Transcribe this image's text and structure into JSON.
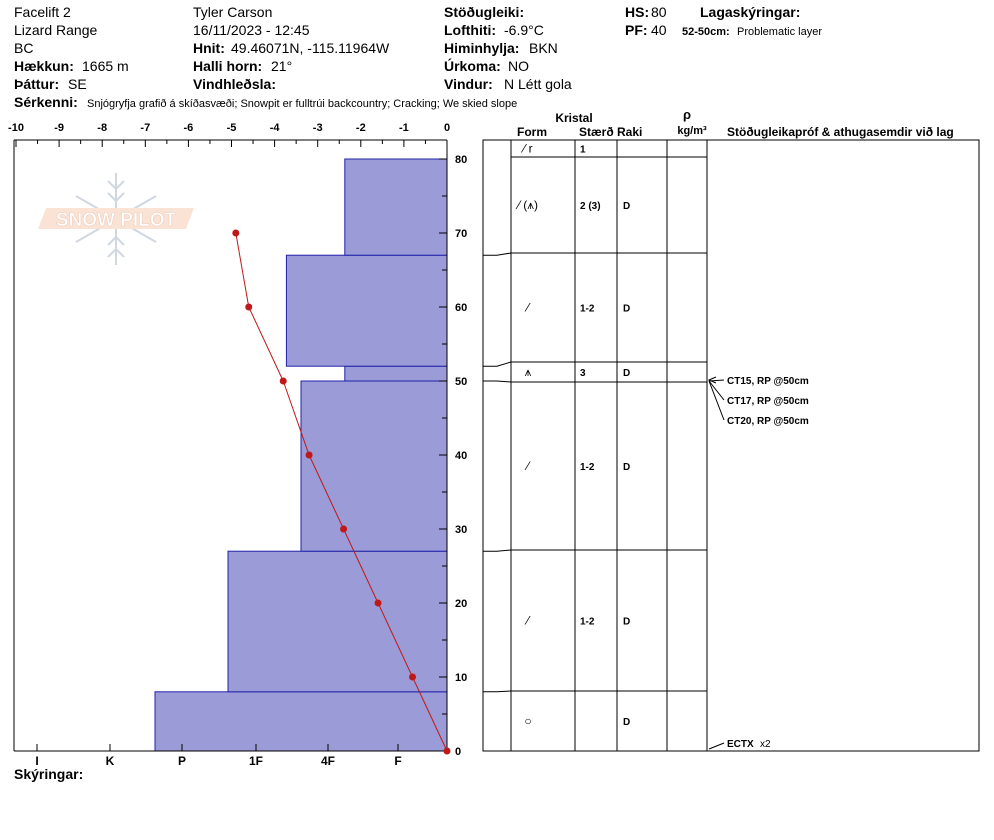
{
  "header": {
    "col1": [
      "Facelift 2",
      "Lizard Range",
      "BC"
    ],
    "elevation_label": "Hækkun:",
    "elevation_value": "1665 m",
    "aspect_label": "Þáttur:",
    "aspect_value": "SE",
    "observer": "Tyler Carson",
    "datetime": "16/11/2023 - 12:45",
    "coords_label": "Hnit:",
    "coords_value": "49.46071N, -115.11964W",
    "slope_label": "Halli horn:",
    "slope_value": "21°",
    "windload_label": "Vindhleðsla:",
    "stability_label": "Stöðugleiki:",
    "airtemp_label": "Lofthiti:",
    "airtemp_value": "-6.9°C",
    "sky_label": "Himinhylja:",
    "sky_value": "BKN",
    "precip_label": "Úrkoma:",
    "precip_value": "NO",
    "wind_label": "Vindur:",
    "wind_value": "N Létt gola",
    "hs_label": "HS:",
    "hs_value": "80",
    "pf_label": "PF:",
    "pf_value": "40",
    "layers_label": "Lagaskýringar:",
    "layer_note_range": "52-50cm:",
    "layer_note_text": "Problematic layer",
    "features_label": "Sérkenni:",
    "features_value": "Snjógryfja grafið á skíðasvæði; Snowpit er fulltrúi backcountry; Cracking; We skied slope",
    "legend_label": "Skýringar:"
  },
  "watermark": "SNOW PILOT",
  "columns": {
    "crystal": "Kristal",
    "form": "Form",
    "size": "Stærð",
    "moisture": "Raki",
    "rho": "ρ",
    "density_unit": "kg/m³",
    "tests": "Stöðugleikapróf & athugasemdir við lag"
  },
  "chart_data": {
    "type": "bar",
    "temp_axis": {
      "ticks": [
        -10,
        -9,
        -8,
        -7,
        -6,
        -5,
        -4,
        -3,
        -2,
        -1,
        0
      ]
    },
    "depth_axis": {
      "ticks": [
        0,
        10,
        20,
        30,
        40,
        50,
        60,
        70,
        80
      ],
      "ylim": [
        0,
        80
      ]
    },
    "hardness_axis": {
      "labels": [
        "I",
        "K",
        "P",
        "1F",
        "4F",
        "F"
      ]
    },
    "layers": [
      {
        "bottom": 0,
        "top": 8,
        "hardness": 4.0,
        "form": "○",
        "size": "",
        "moisture": "D"
      },
      {
        "bottom": 8,
        "top": 27,
        "hardness": 3.0,
        "form": "⁄",
        "size": "1-2",
        "moisture": "D"
      },
      {
        "bottom": 27,
        "top": 50,
        "hardness": 2.0,
        "form": "⁄",
        "size": "1-2",
        "moisture": "D"
      },
      {
        "bottom": 50,
        "top": 52,
        "hardness": 1.4,
        "form": "⩚",
        "size": "3",
        "moisture": "D"
      },
      {
        "bottom": 52,
        "top": 67,
        "hardness": 2.2,
        "form": "⁄",
        "size": "1-2",
        "moisture": "D"
      },
      {
        "bottom": 67,
        "top": 80,
        "hardness": 1.4,
        "form": "⁄ (⩚)",
        "size": "2 (3)",
        "moisture": "D"
      },
      {
        "bottom": 80,
        "top": 81,
        "hardness": 0,
        "form": "⁄ r",
        "size": "1",
        "moisture": ""
      }
    ],
    "temperature_profile": [
      {
        "depth": 0,
        "temp": 0.0
      },
      {
        "depth": 10,
        "temp": -0.8
      },
      {
        "depth": 20,
        "temp": -1.6
      },
      {
        "depth": 30,
        "temp": -2.4
      },
      {
        "depth": 40,
        "temp": -3.2
      },
      {
        "depth": 50,
        "temp": -3.8
      },
      {
        "depth": 60,
        "temp": -4.6
      },
      {
        "depth": 70,
        "temp": -4.9
      }
    ],
    "tests": [
      {
        "label": "CT15, RP @50cm",
        "depth": 50
      },
      {
        "label": "CT17, RP @50cm",
        "depth": 50
      },
      {
        "label": "CT20, RP @50cm",
        "depth": 50
      }
    ],
    "bottom_test": {
      "label": "ECTX",
      "extra": "x2",
      "depth": 0
    },
    "colors": {
      "hardness_fill": "#9b9bd7",
      "hardness_stroke": "#2222aa",
      "temp_line": "#c01818"
    }
  }
}
